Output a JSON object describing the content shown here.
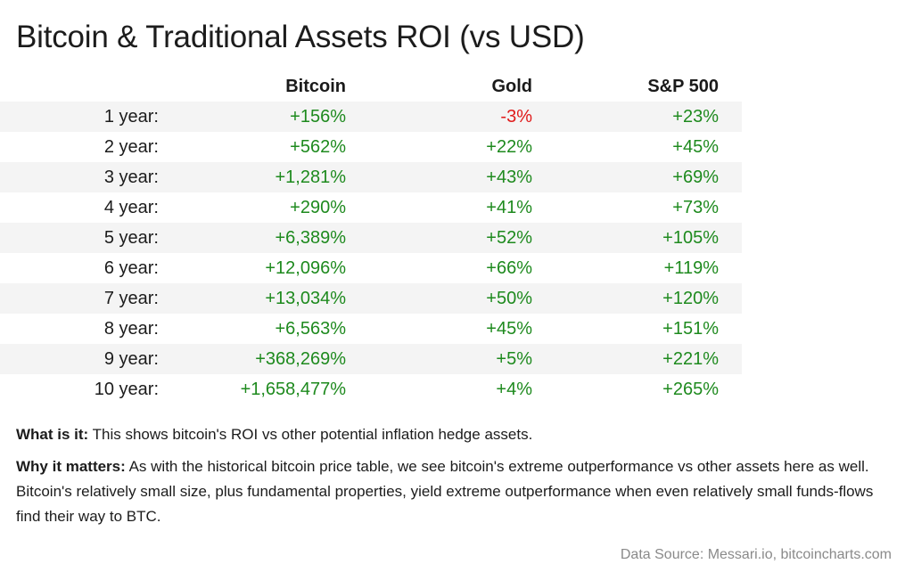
{
  "title": "Bitcoin & Traditional Assets ROI (vs USD)",
  "table": {
    "headers": [
      "Bitcoin",
      "Gold",
      "S&P 500"
    ],
    "rows": [
      {
        "period": "1 year:",
        "bitcoin": "+156%",
        "gold": "-3%",
        "sp500": "+23%"
      },
      {
        "period": "2 year:",
        "bitcoin": "+562%",
        "gold": "+22%",
        "sp500": "+45%"
      },
      {
        "period": "3 year:",
        "bitcoin": "+1,281%",
        "gold": "+43%",
        "sp500": "+69%"
      },
      {
        "period": "4 year:",
        "bitcoin": "+290%",
        "gold": "+41%",
        "sp500": "+73%"
      },
      {
        "period": "5 year:",
        "bitcoin": "+6,389%",
        "gold": "+52%",
        "sp500": "+105%"
      },
      {
        "period": "6 year:",
        "bitcoin": "+12,096%",
        "gold": "+66%",
        "sp500": "+119%"
      },
      {
        "period": "7 year:",
        "bitcoin": "+13,034%",
        "gold": "+50%",
        "sp500": "+120%"
      },
      {
        "period": "8 year:",
        "bitcoin": "+6,563%",
        "gold": "+45%",
        "sp500": "+151%"
      },
      {
        "period": "9 year:",
        "bitcoin": "+368,269%",
        "gold": "+5%",
        "sp500": "+221%"
      },
      {
        "period": "10 year:",
        "bitcoin": "+1,658,477%",
        "gold": "+4%",
        "sp500": "+265%"
      }
    ]
  },
  "colors": {
    "positive": "#1e8a1e",
    "negative": "#e01a1a",
    "row_shade": "#f4f4f4"
  },
  "notes": {
    "what_label": "What is it:",
    "what_text": " This shows bitcoin's ROI vs other potential inflation hedge assets.",
    "why_label": "Why it matters:",
    "why_text": " As with the historical bitcoin price table, we see bitcoin's extreme outperformance vs other assets here as well. Bitcoin's relatively small size, plus fundamental properties, yield extreme outperformance when even relatively small funds-flows find their way to BTC."
  },
  "source": "Data Source: Messari.io, bitcoincharts.com"
}
